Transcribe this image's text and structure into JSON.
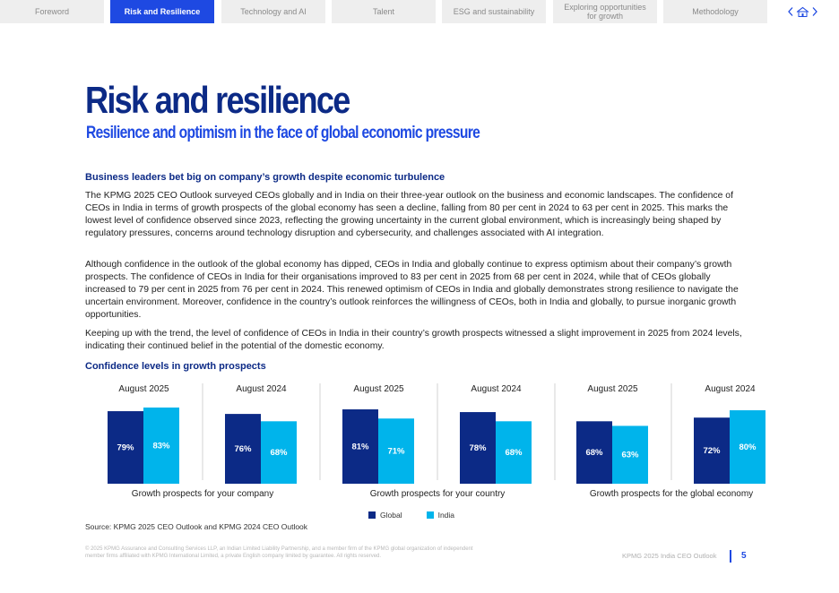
{
  "nav": {
    "tabs": [
      {
        "label": "Foreword",
        "active": false
      },
      {
        "label": "Risk and Resilience",
        "active": true
      },
      {
        "label": "Technology and AI",
        "active": false
      },
      {
        "label": "Talent",
        "active": false
      },
      {
        "label": "ESG and sustainability",
        "active": false
      },
      {
        "label": "Exploring opportunities for growth",
        "active": false
      },
      {
        "label": "Methodology",
        "active": false
      }
    ],
    "icons": [
      "chevron-left-icon",
      "home-icon",
      "chevron-right-icon"
    ]
  },
  "header": {
    "title": "Risk and resilience",
    "subtitle": "Resilience and optimism in the face of global economic pressure"
  },
  "body": {
    "section_heading": "Business leaders bet big on company’s growth despite economic turbulence",
    "paragraphs": [
      "The KPMG 2025 CEO Outlook surveyed CEOs globally and in India on their three-year outlook on the business and economic landscapes. The confidence of CEOs in India in terms of growth prospects of the global economy has seen a decline, falling from 80 per cent in 2024 to 63 per cent in 2025. This marks the lowest level of confidence observed since 2023, reflecting the growing uncertainty in the current global environment, which is increasingly being shaped by regulatory pressures, concerns around technology disruption and cybersecurity, and challenges associated with AI integration.",
      "Although confidence in the outlook of the global economy has dipped, CEOs in India and globally continue to express optimism about their company’s growth prospects. The confidence of CEOs in India for their organisations improved to 83 per cent in 2025 from 68 per cent in 2024, while that of CEOs globally increased to 79 per cent in 2025 from 76 per cent in 2024. This renewed optimism of CEOs in India and globally demonstrates strong resilience to navigate the uncertain environment. Moreover, confidence in the country’s outlook reinforces the willingness of CEOs, both in India and globally, to pursue inorganic growth opportunities.",
      "Keeping up with the trend, the level of confidence of CEOs in India in their country’s growth prospects witnessed a slight improvement in 2025 from 2024 levels, indicating their continued belief in the potential of the domestic economy."
    ],
    "chart_heading": "Confidence levels in growth prospects",
    "source": "Source: KPMG 2025 CEO Outlook and KPMG 2024 CEO Outlook"
  },
  "chart_data": {
    "type": "bar",
    "title": "Confidence levels in growth prospects",
    "unit": "%",
    "series_names": [
      "Global",
      "India"
    ],
    "colors": {
      "Global": "#0c2a86",
      "India": "#00b4eb"
    },
    "ylim": [
      0,
      100
    ],
    "groups": [
      {
        "label": "Growth prospects for your company",
        "periods": [
          {
            "period": "August 2025",
            "values": {
              "Global": 79,
              "India": 83
            }
          },
          {
            "period": "August 2024",
            "values": {
              "Global": 76,
              "India": 68
            }
          }
        ]
      },
      {
        "label": "Growth prospects for your country",
        "periods": [
          {
            "period": "August 2025",
            "values": {
              "Global": 81,
              "India": 71
            }
          },
          {
            "period": "August 2024",
            "values": {
              "Global": 78,
              "India": 68
            }
          }
        ]
      },
      {
        "label": "Growth prospects for the global economy",
        "periods": [
          {
            "period": "August 2025",
            "values": {
              "Global": 68,
              "India": 63
            }
          },
          {
            "period": "August 2024",
            "values": {
              "Global": 72,
              "India": 80
            }
          }
        ]
      }
    ],
    "legend": [
      {
        "name": "Global",
        "label": "Global"
      },
      {
        "name": "India",
        "label": "India"
      }
    ]
  },
  "footer": {
    "legal": "© 2025 KPMG Assurance and Consulting Services LLP, an Indian Limited Liability Partnership, and a member firm of the KPMG global organization of independent member firms affiliated with KPMG International Limited, a private English company limited by guarantee. All rights reserved.",
    "document": "KPMG 2025 India CEO Outlook",
    "page": "5"
  }
}
